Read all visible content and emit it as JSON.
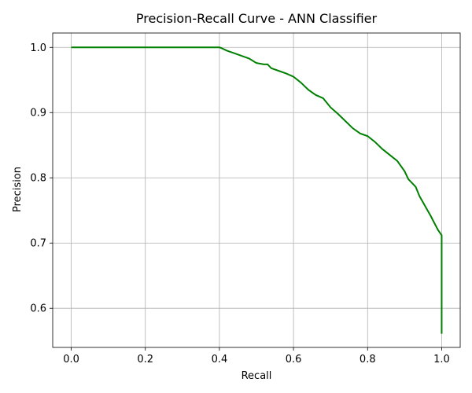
{
  "chart_data": {
    "type": "line",
    "title": "Precision-Recall Curve - ANN Classifier",
    "xlabel": "Recall",
    "ylabel": "Precision",
    "xlim": [
      -0.05,
      1.05
    ],
    "ylim": [
      0.54,
      1.022
    ],
    "xticks": [
      0.0,
      0.2,
      0.4,
      0.6,
      0.8,
      1.0
    ],
    "xtick_labels": [
      "0.0",
      "0.2",
      "0.4",
      "0.6",
      "0.8",
      "1.0"
    ],
    "yticks": [
      0.6,
      0.7,
      0.8,
      0.9,
      1.0
    ],
    "ytick_labels": [
      "0.6",
      "0.7",
      "0.8",
      "0.9",
      "1.0"
    ],
    "grid": true,
    "line_color": "#008000",
    "series": [
      {
        "x": [
          0.0,
          0.1,
          0.2,
          0.3,
          0.4,
          0.405,
          0.42,
          0.44,
          0.46,
          0.48,
          0.5,
          0.52,
          0.53,
          0.54,
          0.56,
          0.58,
          0.6,
          0.62,
          0.64,
          0.66,
          0.68,
          0.7,
          0.72,
          0.74,
          0.76,
          0.78,
          0.8,
          0.82,
          0.84,
          0.86,
          0.88,
          0.9,
          0.91,
          0.92,
          0.93,
          0.94,
          0.95,
          0.96,
          0.97,
          0.98,
          0.99,
          1.0,
          1.0,
          1.0
        ],
        "y": [
          1.0,
          1.0,
          1.0,
          1.0,
          1.0,
          0.999,
          0.995,
          0.991,
          0.987,
          0.983,
          0.976,
          0.974,
          0.974,
          0.968,
          0.964,
          0.96,
          0.955,
          0.946,
          0.935,
          0.927,
          0.922,
          0.908,
          0.898,
          0.887,
          0.876,
          0.868,
          0.864,
          0.855,
          0.844,
          0.835,
          0.826,
          0.81,
          0.798,
          0.792,
          0.786,
          0.772,
          0.762,
          0.752,
          0.742,
          0.731,
          0.72,
          0.712,
          0.65,
          0.561
        ]
      }
    ]
  }
}
